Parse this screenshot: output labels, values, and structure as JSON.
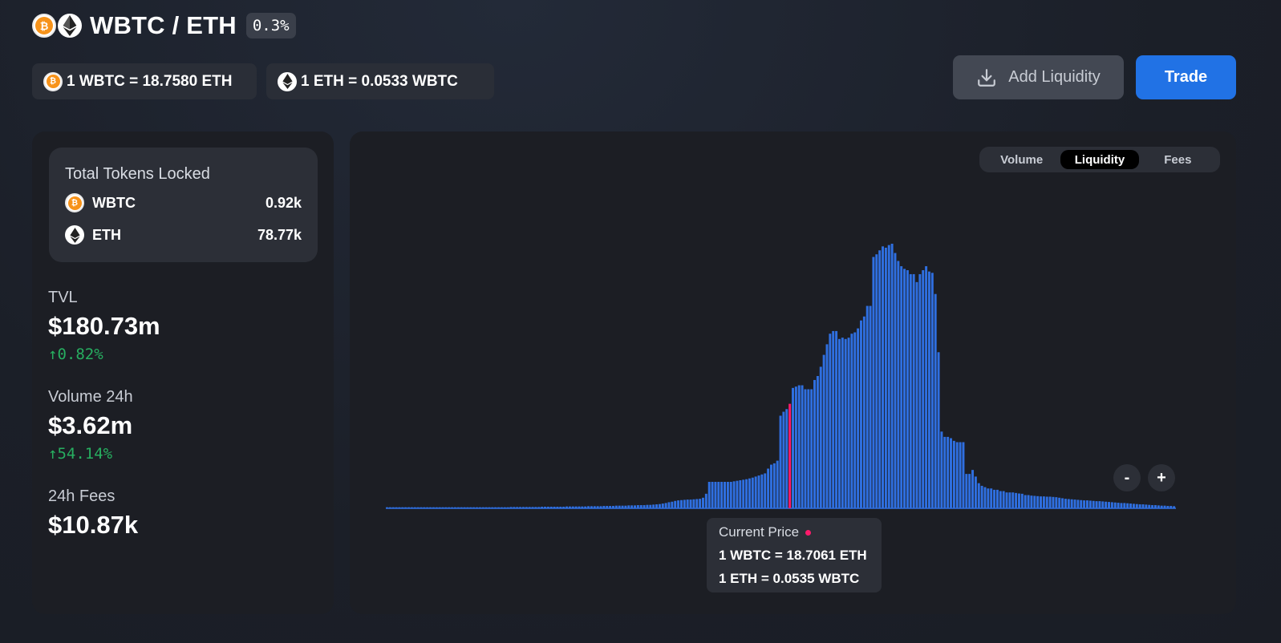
{
  "header": {
    "pair_title": "WBTC / ETH",
    "fee_tier": "0.3%",
    "token0_icon": "wbtc-icon",
    "token1_icon": "eth-icon"
  },
  "prices": {
    "wbtc_eth": "1 WBTC = 18.7580 ETH",
    "eth_wbtc": "1 ETH = 0.0533 WBTC"
  },
  "actions": {
    "add_liquidity": "Add Liquidity",
    "trade": "Trade"
  },
  "locked": {
    "title": "Total Tokens Locked",
    "tokens": [
      {
        "symbol": "WBTC",
        "amount": "0.92k",
        "icon": "wbtc-icon"
      },
      {
        "symbol": "ETH",
        "amount": "78.77k",
        "icon": "eth-icon"
      }
    ]
  },
  "stats": {
    "tvl": {
      "label": "TVL",
      "value": "$180.73m",
      "change": "↑0.82%"
    },
    "volume": {
      "label": "Volume 24h",
      "value": "$3.62m",
      "change": "↑54.14%"
    },
    "fees": {
      "label": "24h Fees",
      "value": "$10.87k"
    }
  },
  "chart_toggle": {
    "options": [
      "Volume",
      "Liquidity",
      "Fees"
    ],
    "selected": "Liquidity"
  },
  "zoom": {
    "out": "-",
    "in": "+"
  },
  "tooltip": {
    "title": "Current Price",
    "line1": "1 WBTC = 18.7061 ETH",
    "line2": "1 ETH = 0.0535 WBTC"
  },
  "colors": {
    "accent": "#2172e5",
    "bar": "#2f6fe0",
    "current_price_bar": "#ff1a6b",
    "positive": "#27ae60"
  },
  "chart_data": {
    "type": "bar",
    "title": "",
    "xlabel": "",
    "ylabel": "",
    "current_price_index": 130,
    "ylim": [
      0,
      100
    ],
    "values": [
      0.4,
      0.4,
      0.4,
      0.4,
      0.4,
      0.4,
      0.4,
      0.4,
      0.4,
      0.4,
      0.4,
      0.4,
      0.4,
      0.4,
      0.4,
      0.4,
      0.4,
      0.4,
      0.4,
      0.4,
      0.4,
      0.4,
      0.4,
      0.4,
      0.4,
      0.4,
      0.4,
      0.4,
      0.4,
      0.4,
      0.4,
      0.4,
      0.4,
      0.4,
      0.4,
      0.4,
      0.4,
      0.4,
      0.4,
      0.4,
      0.5,
      0.5,
      0.5,
      0.5,
      0.5,
      0.5,
      0.5,
      0.5,
      0.5,
      0.5,
      0.6,
      0.6,
      0.6,
      0.6,
      0.6,
      0.6,
      0.6,
      0.6,
      0.7,
      0.7,
      0.7,
      0.7,
      0.7,
      0.7,
      0.7,
      0.8,
      0.8,
      0.8,
      0.8,
      0.8,
      0.9,
      0.9,
      0.9,
      0.9,
      1.0,
      1.0,
      1.0,
      1.0,
      1.1,
      1.1,
      1.1,
      1.2,
      1.2,
      1.2,
      1.3,
      1.3,
      1.4,
      1.5,
      1.6,
      1.8,
      2.0,
      2.3,
      2.5,
      2.8,
      3.0,
      3.1,
      3.2,
      3.3,
      3.3,
      3.4,
      3.5,
      3.6,
      4.0,
      5.5,
      10.0,
      10.0,
      10.0,
      10.0,
      10.0,
      10.0,
      10.0,
      10.0,
      10.2,
      10.4,
      10.6,
      10.8,
      11.0,
      11.3,
      11.6,
      12.0,
      12.4,
      12.8,
      13.2,
      15.0,
      16.5,
      17.0,
      18.0,
      35.0,
      36.5,
      37.5,
      39.5,
      45.5,
      46.0,
      46.5,
      46.5,
      45.0,
      45.0,
      45.0,
      48.5,
      50.0,
      53.5,
      58.0,
      62.0,
      66.0,
      67.0,
      67.0,
      64.0,
      64.5,
      64.0,
      64.5,
      66.0,
      66.5,
      68.0,
      71.0,
      72.5,
      76.5,
      76.5,
      95.0,
      96.0,
      97.5,
      99.0,
      98.5,
      99.5,
      100.0,
      96.5,
      93.5,
      91.5,
      90.5,
      90.0,
      88.5,
      88.5,
      85.5,
      88.5,
      90.0,
      91.5,
      89.5,
      89.0,
      81.0,
      59.0,
      29.0,
      27.0,
      27.0,
      26.5,
      25.5,
      25.0,
      25.0,
      25.0,
      13.0,
      13.0,
      14.5,
      12.0,
      9.5,
      8.5,
      8.0,
      7.5,
      7.5,
      7.0,
      7.0,
      6.5,
      6.5,
      6.0,
      6.0,
      6.0,
      5.8,
      5.6,
      5.5,
      5.0,
      5.0,
      4.8,
      4.7,
      4.6,
      4.5,
      4.5,
      4.4,
      4.4,
      4.3,
      4.2,
      4.0,
      3.8,
      3.6,
      3.5,
      3.4,
      3.3,
      3.2,
      3.1,
      3.0,
      3.0,
      2.9,
      2.8,
      2.7,
      2.7,
      2.6,
      2.5,
      2.4,
      2.3,
      2.2,
      2.1,
      2.0,
      2.0,
      1.9,
      1.8,
      1.7,
      1.6,
      1.5,
      1.5,
      1.4,
      1.3,
      1.2,
      1.2,
      1.1,
      1.0,
      1.0,
      0.9,
      0.9,
      0.8
    ]
  }
}
